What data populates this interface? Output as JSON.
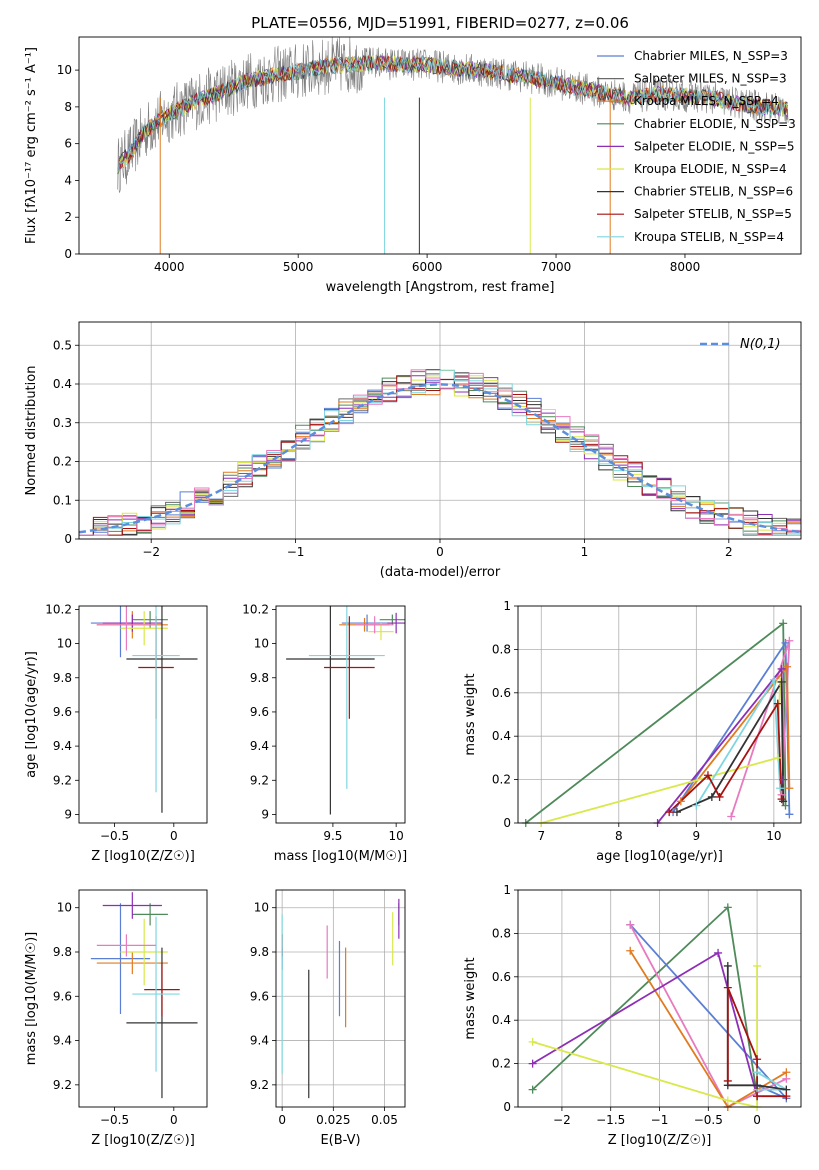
{
  "figure_title": "PLATE=0556, MJD=51991, FIBERID=0277, z=0.06",
  "colors": {
    "c1": "#5a7fd4",
    "c2": "#6a6a6a",
    "c3": "#e07b20",
    "c4": "#4f8a5a",
    "c5": "#8e2eb5",
    "c6": "#d9e84a",
    "c7": "#333333",
    "c8": "#a51212",
    "c9": "#7fd6e0",
    "pink": "#e87abf",
    "data": "#7f7f7f",
    "gauss": "#5b8fdc",
    "grid": "#b0b0b0"
  },
  "chart_data": [
    {
      "id": "spectrum",
      "type": "line",
      "title": "PLATE=0556, MJD=51991, FIBERID=0277, z=0.06",
      "xlabel": "wavelength [Angstrom, rest frame]",
      "ylabel": "Flux [fλ10⁻¹⁷ erg cm⁻² s⁻¹ A⁻¹]",
      "xlim": [
        3300,
        8900
      ],
      "ylim": [
        0,
        11.8
      ],
      "xticks": [
        4000,
        5000,
        6000,
        7000,
        8000
      ],
      "yticks": [
        0,
        2,
        4,
        6,
        8,
        10
      ],
      "grid": false,
      "legend_position": "top-right",
      "legend": [
        "Chabrier MILES, N_SSP=3",
        "Salpeter MILES, N_SSP=3",
        "Kroupa MILES, N_SSP=4",
        "Chabrier ELODIE, N_SSP=3",
        "Salpeter ELODIE, N_SSP=5",
        "Kroupa ELODIE, N_SSP=4",
        "Chabrier STELIB, N_SSP=6",
        "Salpeter STELIB, N_SSP=5",
        "Kroupa STELIB, N_SSP=4"
      ],
      "continuum": {
        "wavelength": [
          3600,
          3700,
          3800,
          3900,
          4000,
          4200,
          4400,
          4600,
          4800,
          5000,
          5200,
          5400,
          5600,
          5800,
          6000,
          6200,
          6400,
          6600,
          6800,
          7000,
          7200,
          7400,
          7600,
          7800,
          8000,
          8200,
          8400,
          8600,
          8800
        ],
        "flux": [
          4.8,
          5.5,
          6.6,
          7.2,
          7.6,
          8.3,
          8.8,
          9.4,
          9.7,
          9.9,
          10.2,
          10.3,
          10.4,
          10.3,
          10.3,
          10.1,
          10.0,
          9.8,
          9.6,
          9.3,
          9.0,
          8.7,
          8.5,
          8.7,
          8.6,
          8.5,
          8.2,
          8.0,
          7.9
        ]
      }
    },
    {
      "id": "residuals",
      "type": "histogram",
      "xlabel": "(data-model)/error",
      "ylabel": "Normed distribution",
      "xlim": [
        -2.5,
        2.5
      ],
      "ylim": [
        0,
        0.56
      ],
      "xticks": [
        -2,
        -1,
        0,
        1,
        2
      ],
      "yticks": [
        0.0,
        0.1,
        0.2,
        0.3,
        0.4,
        0.5
      ],
      "grid": true,
      "legend_position": "top-right",
      "legend": [
        "N(0,1)"
      ],
      "bin_width": 0.1
    },
    {
      "id": "age_vs_Z",
      "type": "errorbar",
      "xlabel": "Z [log10(Z/Z☉)]",
      "ylabel": "age [log10(age/yr)]",
      "xlim": [
        -0.8,
        0.28
      ],
      "ylim": [
        8.95,
        10.22
      ],
      "xticks": [
        -0.5,
        0.0
      ],
      "yticks": [
        9.0,
        9.2,
        9.4,
        9.6,
        9.8,
        10.0,
        10.2
      ],
      "grid": false,
      "points": [
        {
          "color": "c1",
          "x": -0.45,
          "xerr": 0.25,
          "y": 10.12,
          "yerr": 0.2
        },
        {
          "color": "c3",
          "x": -0.35,
          "xerr": 0.3,
          "y": 10.11,
          "yerr": 0.08
        },
        {
          "color": "c4",
          "x": -0.2,
          "xerr": 0.15,
          "y": 10.14,
          "yerr": 0.05
        },
        {
          "color": "c5",
          "x": -0.35,
          "xerr": 0.25,
          "y": 10.12,
          "yerr": 0.05
        },
        {
          "color": "c6",
          "x": -0.25,
          "xerr": 0.2,
          "y": 10.09,
          "yerr": 0.1
        },
        {
          "color": "c7",
          "x": -0.1,
          "xerr": 0.3,
          "y": 9.91,
          "yerr": 0.9
        },
        {
          "color": "c8",
          "x": -0.15,
          "xerr": 0.15,
          "y": 9.86,
          "yerr": 0.3
        },
        {
          "color": "c9",
          "x": -0.15,
          "xerr": 0.2,
          "y": 9.93,
          "yerr": 0.8
        },
        {
          "color": "pink",
          "x": -0.4,
          "xerr": 0.25,
          "y": 10.11,
          "yerr": 0.15
        }
      ]
    },
    {
      "id": "age_vs_mass",
      "type": "errorbar",
      "xlabel": "mass [log10(M/M☉)]",
      "ylabel": "",
      "xlim": [
        9.05,
        10.07
      ],
      "ylim": [
        8.95,
        10.22
      ],
      "xticks": [
        9.5,
        10.0
      ],
      "yticks": [
        9.0,
        9.2,
        9.4,
        9.6,
        9.8,
        10.0,
        10.2
      ],
      "grid": false,
      "points": [
        {
          "color": "c1",
          "x": 9.77,
          "xerr": 0.2,
          "y": 10.12,
          "yerr": 0.05
        },
        {
          "color": "c3",
          "x": 9.75,
          "xerr": 0.2,
          "y": 10.11,
          "yerr": 0.04
        },
        {
          "color": "c4",
          "x": 9.97,
          "xerr": 0.1,
          "y": 10.14,
          "yerr": 0.03
        },
        {
          "color": "c5",
          "x": 10.0,
          "xerr": 0.07,
          "y": 10.12,
          "yerr": 0.06
        },
        {
          "color": "c6",
          "x": 9.88,
          "xerr": 0.1,
          "y": 10.07,
          "yerr": 0.05
        },
        {
          "color": "c7",
          "x": 9.48,
          "xerr": 0.35,
          "y": 9.91,
          "yerr": 0.91
        },
        {
          "color": "c8",
          "x": 9.63,
          "xerr": 0.2,
          "y": 9.86,
          "yerr": 0.3
        },
        {
          "color": "c9",
          "x": 9.61,
          "xerr": 0.3,
          "y": 9.93,
          "yerr": 0.78
        },
        {
          "color": "pink",
          "x": 9.83,
          "xerr": 0.15,
          "y": 10.11,
          "yerr": 0.05
        }
      ]
    },
    {
      "id": "weight_vs_age",
      "type": "line",
      "xlabel": "age [log10(age/yr)]",
      "ylabel": "mass weight",
      "xlim": [
        6.7,
        10.35
      ],
      "ylim": [
        0,
        1.0
      ],
      "xticks": [
        7,
        8,
        9,
        10
      ],
      "yticks": [
        0.0,
        0.2,
        0.4,
        0.6,
        0.8,
        1.0
      ],
      "grid": true,
      "series": [
        {
          "color": "c4",
          "x": [
            6.8,
            10.12,
            10.15
          ],
          "y": [
            0.0,
            0.92,
            0.08
          ]
        },
        {
          "color": "c1",
          "x": [
            8.7,
            10.15,
            10.2
          ],
          "y": [
            0.05,
            0.83,
            0.04
          ]
        },
        {
          "color": "pink",
          "x": [
            9.45,
            10.2,
            10.1
          ],
          "y": [
            0.03,
            0.84,
            0.13
          ]
        },
        {
          "color": "c3",
          "x": [
            8.8,
            10.17,
            10.2
          ],
          "y": [
            0.1,
            0.72,
            0.16
          ]
        },
        {
          "color": "c5",
          "x": [
            8.5,
            10.1,
            10.12
          ],
          "y": [
            0.0,
            0.71,
            0.2
          ]
        },
        {
          "color": "c6",
          "x": [
            7.0,
            10.05,
            10.08
          ],
          "y": [
            0.0,
            0.3,
            0.65
          ]
        },
        {
          "color": "c9",
          "x": [
            9.0,
            10.0,
            10.08
          ],
          "y": [
            0.08,
            0.66,
            0.16
          ]
        },
        {
          "color": "c7",
          "x": [
            8.75,
            9.2,
            10.1,
            10.12
          ],
          "y": [
            0.05,
            0.12,
            0.65,
            0.1
          ]
        },
        {
          "color": "c8",
          "x": [
            8.65,
            9.15,
            9.3,
            10.05,
            10.1
          ],
          "y": [
            0.05,
            0.22,
            0.12,
            0.55,
            0.11
          ]
        }
      ]
    },
    {
      "id": "mass_vs_Z",
      "type": "errorbar",
      "xlabel": "Z [log10(Z/Z☉)]",
      "ylabel": "mass [log10(M/M☉)]",
      "xlim": [
        -0.8,
        0.28
      ],
      "ylim": [
        9.1,
        10.08
      ],
      "xticks": [
        -0.5,
        0.0
      ],
      "yticks": [
        9.2,
        9.4,
        9.6,
        9.8,
        10.0
      ],
      "grid": false,
      "points": [
        {
          "color": "c1",
          "x": -0.45,
          "xerr": 0.25,
          "y": 9.77,
          "yerr": 0.25
        },
        {
          "color": "c3",
          "x": -0.35,
          "xerr": 0.3,
          "y": 9.75,
          "yerr": 0.05
        },
        {
          "color": "c4",
          "x": -0.2,
          "xerr": 0.15,
          "y": 9.97,
          "yerr": 0.05
        },
        {
          "color": "c5",
          "x": -0.35,
          "xerr": 0.25,
          "y": 10.01,
          "yerr": 0.06
        },
        {
          "color": "c6",
          "x": -0.25,
          "xerr": 0.2,
          "y": 9.8,
          "yerr": 0.15
        },
        {
          "color": "c7",
          "x": -0.1,
          "xerr": 0.3,
          "y": 9.48,
          "yerr": 0.34
        },
        {
          "color": "c8",
          "x": -0.1,
          "xerr": 0.15,
          "y": 9.63,
          "yerr": 0.12
        },
        {
          "color": "c9",
          "x": -0.15,
          "xerr": 0.2,
          "y": 9.61,
          "yerr": 0.35
        },
        {
          "color": "pink",
          "x": -0.4,
          "xerr": 0.25,
          "y": 9.83,
          "yerr": 0.05
        }
      ]
    },
    {
      "id": "mass_vs_ebv",
      "type": "errorbar",
      "xlabel": "E(B-V)",
      "ylabel": "",
      "xlim": [
        -0.003,
        0.06
      ],
      "ylim": [
        9.1,
        10.08
      ],
      "xticks": [
        0.0,
        0.025,
        0.05
      ],
      "yticks": [
        9.2,
        9.4,
        9.6,
        9.8,
        10.0
      ],
      "grid": true,
      "points": [
        {
          "color": "c1",
          "x": 0.0,
          "y": 9.77,
          "yerr": 0.05
        },
        {
          "color": "c3",
          "x": 0.031,
          "y": 9.64,
          "yerr": 0.18
        },
        {
          "color": "c4",
          "x": 0.057,
          "y": 9.97,
          "yerr": 0.05
        },
        {
          "color": "c5",
          "x": 0.057,
          "y": 9.95,
          "yerr": 0.09
        },
        {
          "color": "c6",
          "x": 0.054,
          "y": 9.86,
          "yerr": 0.12
        },
        {
          "color": "c7",
          "x": 0.013,
          "y": 9.43,
          "yerr": 0.29
        },
        {
          "color": "c8",
          "x": 0.0,
          "y": 9.83,
          "yerr": 0.05
        },
        {
          "color": "c9",
          "x": 0.0,
          "y": 9.61,
          "yerr": 0.36
        },
        {
          "color": "pink",
          "x": 0.022,
          "y": 9.8,
          "yerr": 0.12
        },
        {
          "color": "c1",
          "x": 0.028,
          "y": 9.68,
          "yerr": 0.17
        }
      ]
    },
    {
      "id": "weight_vs_Z",
      "type": "line",
      "xlabel": "Z [log10(Z/Z☉)]",
      "ylabel": "mass weight",
      "xlim": [
        -2.45,
        0.45
      ],
      "ylim": [
        0,
        1.0
      ],
      "xticks": [
        -2.0,
        -1.5,
        -1.0,
        -0.5,
        0.0
      ],
      "yticks": [
        0.0,
        0.2,
        0.4,
        0.6,
        0.8,
        1.0
      ],
      "grid": true,
      "series": [
        {
          "color": "c4",
          "x": [
            -2.3,
            -0.3,
            0.0
          ],
          "y": [
            0.08,
            0.92,
            0.05
          ]
        },
        {
          "color": "c1",
          "x": [
            -1.3,
            0.3,
            0.0
          ],
          "y": [
            0.84,
            0.04,
            0.1
          ]
        },
        {
          "color": "pink",
          "x": [
            -1.3,
            -0.3,
            0.3
          ],
          "y": [
            0.84,
            0.0,
            0.13
          ]
        },
        {
          "color": "c3",
          "x": [
            -1.3,
            -0.3,
            0.3
          ],
          "y": [
            0.72,
            0.0,
            0.16
          ]
        },
        {
          "color": "c5",
          "x": [
            -2.3,
            -0.4,
            0.0
          ],
          "y": [
            0.2,
            0.71,
            0.05
          ]
        },
        {
          "color": "c6",
          "x": [
            -2.3,
            -0.3,
            0.0,
            0.0
          ],
          "y": [
            0.3,
            0.03,
            0.0,
            0.65
          ]
        },
        {
          "color": "c9",
          "x": [
            0.0,
            0.3,
            0.0
          ],
          "y": [
            0.16,
            0.08,
            0.08
          ]
        },
        {
          "color": "c7",
          "x": [
            -0.3,
            -0.3,
            0.0,
            0.3
          ],
          "y": [
            0.65,
            0.1,
            0.1,
            0.08
          ]
        },
        {
          "color": "c8",
          "x": [
            -0.3,
            -0.3,
            0.0,
            0.0,
            0.3
          ],
          "y": [
            0.12,
            0.55,
            0.22,
            0.05,
            0.05
          ]
        }
      ]
    }
  ]
}
